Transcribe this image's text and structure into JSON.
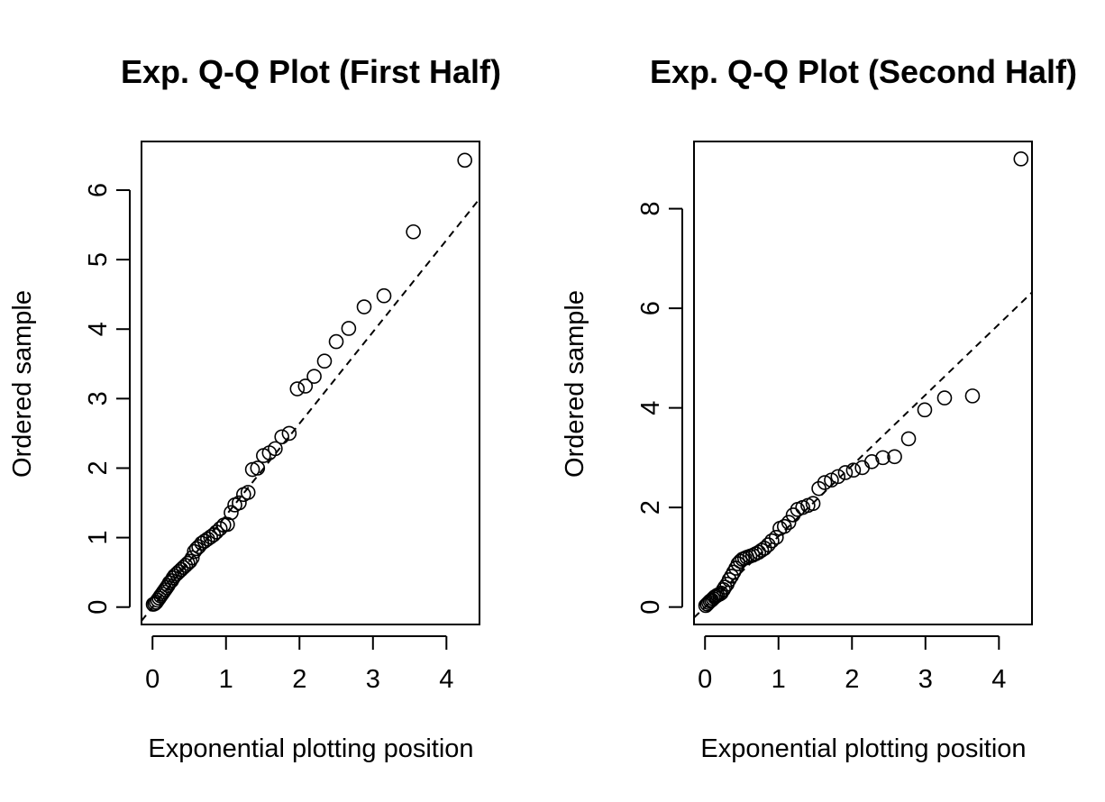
{
  "chart_data": [
    {
      "type": "scatter",
      "title": "Exp. Q-Q Plot (First Half)",
      "xlabel": "Exponential plotting position",
      "ylabel": "Ordered sample",
      "xlim": [
        -0.15,
        4.45
      ],
      "ylim": [
        -0.25,
        6.7
      ],
      "xticks": [
        0,
        1,
        2,
        3,
        4
      ],
      "yticks": [
        0,
        1,
        2,
        3,
        4,
        5,
        6
      ],
      "grid": false,
      "reference_line": {
        "style": "dashed",
        "intercept": 0,
        "slope": 1.32
      },
      "points": [
        [
          0.01,
          0.04
        ],
        [
          0.03,
          0.05
        ],
        [
          0.05,
          0.07
        ],
        [
          0.07,
          0.1
        ],
        [
          0.09,
          0.13
        ],
        [
          0.11,
          0.16
        ],
        [
          0.13,
          0.19
        ],
        [
          0.15,
          0.22
        ],
        [
          0.17,
          0.25
        ],
        [
          0.19,
          0.28
        ],
        [
          0.21,
          0.31
        ],
        [
          0.23,
          0.35
        ],
        [
          0.26,
          0.38
        ],
        [
          0.28,
          0.42
        ],
        [
          0.3,
          0.45
        ],
        [
          0.33,
          0.48
        ],
        [
          0.36,
          0.51
        ],
        [
          0.39,
          0.54
        ],
        [
          0.42,
          0.57
        ],
        [
          0.45,
          0.6
        ],
        [
          0.48,
          0.63
        ],
        [
          0.51,
          0.66
        ],
        [
          0.54,
          0.71
        ],
        [
          0.57,
          0.8
        ],
        [
          0.6,
          0.84
        ],
        [
          0.63,
          0.87
        ],
        [
          0.67,
          0.92
        ],
        [
          0.71,
          0.95
        ],
        [
          0.75,
          0.98
        ],
        [
          0.79,
          1.01
        ],
        [
          0.83,
          1.04
        ],
        [
          0.87,
          1.08
        ],
        [
          0.92,
          1.13
        ],
        [
          0.97,
          1.18
        ],
        [
          1.02,
          1.19
        ],
        [
          1.07,
          1.36
        ],
        [
          1.12,
          1.47
        ],
        [
          1.18,
          1.5
        ],
        [
          1.24,
          1.62
        ],
        [
          1.3,
          1.65
        ],
        [
          1.36,
          1.98
        ],
        [
          1.43,
          2.0
        ],
        [
          1.51,
          2.18
        ],
        [
          1.59,
          2.22
        ],
        [
          1.67,
          2.28
        ],
        [
          1.76,
          2.45
        ],
        [
          1.86,
          2.5
        ],
        [
          1.97,
          3.14
        ],
        [
          2.08,
          3.18
        ],
        [
          2.2,
          3.32
        ],
        [
          2.34,
          3.54
        ],
        [
          2.5,
          3.82
        ],
        [
          2.67,
          4.01
        ],
        [
          2.88,
          4.32
        ],
        [
          3.15,
          4.48
        ],
        [
          3.55,
          5.4
        ],
        [
          4.25,
          6.43
        ]
      ]
    },
    {
      "type": "scatter",
      "title": "Exp. Q-Q Plot (Second Half)",
      "xlabel": "Exponential plotting position",
      "ylabel": "Ordered sample",
      "xlim": [
        -0.15,
        4.45
      ],
      "ylim": [
        -0.35,
        9.35
      ],
      "xticks": [
        0,
        1,
        2,
        3,
        4
      ],
      "yticks": [
        0,
        2,
        4,
        6,
        8
      ],
      "grid": false,
      "reference_line": {
        "style": "dashed",
        "intercept": 0,
        "slope": 1.42
      },
      "points": [
        [
          0.01,
          0.03
        ],
        [
          0.03,
          0.06
        ],
        [
          0.05,
          0.09
        ],
        [
          0.07,
          0.12
        ],
        [
          0.09,
          0.14
        ],
        [
          0.11,
          0.17
        ],
        [
          0.13,
          0.2
        ],
        [
          0.15,
          0.22
        ],
        [
          0.17,
          0.24
        ],
        [
          0.2,
          0.26
        ],
        [
          0.22,
          0.28
        ],
        [
          0.25,
          0.35
        ],
        [
          0.27,
          0.4
        ],
        [
          0.3,
          0.46
        ],
        [
          0.33,
          0.55
        ],
        [
          0.36,
          0.62
        ],
        [
          0.39,
          0.7
        ],
        [
          0.42,
          0.78
        ],
        [
          0.45,
          0.87
        ],
        [
          0.48,
          0.92
        ],
        [
          0.51,
          0.96
        ],
        [
          0.54,
          0.98
        ],
        [
          0.57,
          1.0
        ],
        [
          0.61,
          1.02
        ],
        [
          0.65,
          1.04
        ],
        [
          0.69,
          1.07
        ],
        [
          0.73,
          1.1
        ],
        [
          0.77,
          1.14
        ],
        [
          0.81,
          1.18
        ],
        [
          0.86,
          1.25
        ],
        [
          0.91,
          1.33
        ],
        [
          0.97,
          1.4
        ],
        [
          1.02,
          1.58
        ],
        [
          1.08,
          1.62
        ],
        [
          1.14,
          1.7
        ],
        [
          1.2,
          1.85
        ],
        [
          1.26,
          1.96
        ],
        [
          1.33,
          2.0
        ],
        [
          1.4,
          2.04
        ],
        [
          1.47,
          2.08
        ],
        [
          1.55,
          2.38
        ],
        [
          1.63,
          2.5
        ],
        [
          1.72,
          2.55
        ],
        [
          1.81,
          2.62
        ],
        [
          1.91,
          2.7
        ],
        [
          2.02,
          2.75
        ],
        [
          2.14,
          2.8
        ],
        [
          2.27,
          2.92
        ],
        [
          2.42,
          3.0
        ],
        [
          2.58,
          3.02
        ],
        [
          2.77,
          3.38
        ],
        [
          2.99,
          3.96
        ],
        [
          3.26,
          4.2
        ],
        [
          3.64,
          4.24
        ],
        [
          4.3,
          9.0
        ]
      ]
    }
  ]
}
